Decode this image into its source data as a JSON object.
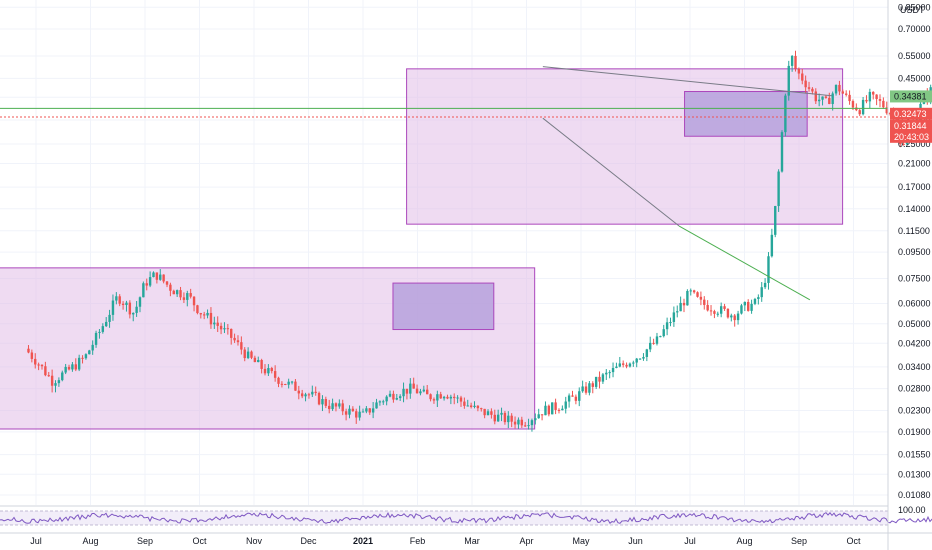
{
  "chart_data": {
    "type": "candlestick",
    "currency": "USDT",
    "y_scale": "log",
    "ylim": [
      0.0093,
      0.83
    ],
    "y_ticks": [
      "0.01080",
      "0.01300",
      "0.01550",
      "0.01900",
      "0.02300",
      "0.02800",
      "0.03400",
      "0.04200",
      "0.05000",
      "0.06000",
      "0.07500",
      "0.09500",
      "0.11500",
      "0.14000",
      "0.17000",
      "0.21000",
      "0.25000",
      "0.31000",
      "0.38000",
      "0.45000",
      "0.55000",
      "0.70000",
      "0.85000"
    ],
    "x_ticks": [
      "Jul",
      "Aug",
      "Sep",
      "Oct",
      "Nov",
      "Dec",
      "2021",
      "Feb",
      "Mar",
      "Apr",
      "May",
      "Jun",
      "Jul",
      "Aug",
      "Sep",
      "Oct"
    ],
    "tags": {
      "green_level": "0.34381",
      "last_price": "0.32473",
      "red_level": "0.31844",
      "countdown": "20:43:03"
    },
    "indicator_label": "100.00",
    "colors": {
      "up": "#26a69a",
      "down": "#ef5350",
      "zone_fill": "#e1bee7",
      "zone_stroke": "#ab47bc",
      "consolidation_fill": "#b39ddb",
      "green_line": "#4caf50",
      "red_line": "#ef5350",
      "indicator": "#7e57c2"
    },
    "price_path": [
      [
        -0.2,
        0.04
      ],
      [
        0.0,
        0.036
      ],
      [
        0.3,
        0.03
      ],
      [
        0.6,
        0.033
      ],
      [
        0.9,
        0.037
      ],
      [
        1.2,
        0.048
      ],
      [
        1.5,
        0.064
      ],
      [
        1.8,
        0.055
      ],
      [
        2.0,
        0.072
      ],
      [
        2.2,
        0.078
      ],
      [
        2.5,
        0.068
      ],
      [
        2.8,
        0.064
      ],
      [
        3.0,
        0.056
      ],
      [
        3.3,
        0.05
      ],
      [
        3.6,
        0.044
      ],
      [
        3.9,
        0.037
      ],
      [
        4.2,
        0.033
      ],
      [
        4.5,
        0.03
      ],
      [
        4.8,
        0.028
      ],
      [
        5.1,
        0.026
      ],
      [
        5.4,
        0.024
      ],
      [
        5.7,
        0.023
      ],
      [
        6.0,
        0.022
      ],
      [
        6.3,
        0.025
      ],
      [
        6.6,
        0.027
      ],
      [
        6.9,
        0.028
      ],
      [
        7.2,
        0.026
      ],
      [
        7.5,
        0.027
      ],
      [
        7.8,
        0.025
      ],
      [
        8.1,
        0.023
      ],
      [
        8.4,
        0.022
      ],
      [
        8.7,
        0.021
      ],
      [
        9.0,
        0.021
      ],
      [
        9.3,
        0.023
      ],
      [
        9.6,
        0.024
      ],
      [
        9.9,
        0.026
      ],
      [
        10.2,
        0.029
      ],
      [
        10.5,
        0.032
      ],
      [
        10.8,
        0.035
      ],
      [
        11.1,
        0.038
      ],
      [
        11.4,
        0.043
      ],
      [
        11.6,
        0.05
      ],
      [
        11.8,
        0.058
      ],
      [
        12.0,
        0.066
      ],
      [
        12.2,
        0.06
      ],
      [
        12.4,
        0.058
      ],
      [
        12.6,
        0.056
      ],
      [
        12.8,
        0.054
      ],
      [
        13.0,
        0.058
      ],
      [
        13.2,
        0.06
      ],
      [
        13.35,
        0.07
      ],
      [
        13.45,
        0.09
      ],
      [
        13.55,
        0.13
      ],
      [
        13.65,
        0.22
      ],
      [
        13.75,
        0.4
      ],
      [
        13.85,
        0.56
      ],
      [
        13.95,
        0.48
      ],
      [
        14.1,
        0.44
      ],
      [
        14.3,
        0.38
      ],
      [
        14.5,
        0.36
      ],
      [
        14.7,
        0.42
      ],
      [
        14.9,
        0.37
      ],
      [
        15.1,
        0.34
      ],
      [
        15.3,
        0.38
      ],
      [
        15.5,
        0.36
      ],
      [
        15.7,
        0.33
      ],
      [
        15.9,
        0.24
      ],
      [
        16.1,
        0.3
      ],
      [
        16.3,
        0.38
      ],
      [
        16.5,
        0.42
      ],
      [
        16.7,
        0.36
      ],
      [
        16.9,
        0.34
      ],
      [
        17.1,
        0.38
      ],
      [
        17.3,
        0.33
      ],
      [
        17.5,
        0.3
      ],
      [
        17.7,
        0.23
      ],
      [
        17.9,
        0.16
      ],
      [
        18.1,
        0.15
      ],
      [
        18.3,
        0.2
      ],
      [
        18.5,
        0.22
      ],
      [
        18.7,
        0.19
      ],
      [
        18.9,
        0.18
      ],
      [
        19.1,
        0.175
      ],
      [
        19.3,
        0.17
      ],
      [
        19.5,
        0.18
      ],
      [
        19.7,
        0.17
      ],
      [
        19.9,
        0.145
      ],
      [
        20.1,
        0.13
      ],
      [
        20.3,
        0.135
      ],
      [
        20.5,
        0.14
      ],
      [
        20.7,
        0.15
      ],
      [
        20.9,
        0.17
      ],
      [
        21.1,
        0.2
      ],
      [
        21.3,
        0.24
      ],
      [
        21.5,
        0.3
      ],
      [
        21.7,
        0.36
      ],
      [
        21.9,
        0.38
      ],
      [
        22.1,
        0.34
      ],
      [
        22.3,
        0.324
      ]
    ]
  }
}
